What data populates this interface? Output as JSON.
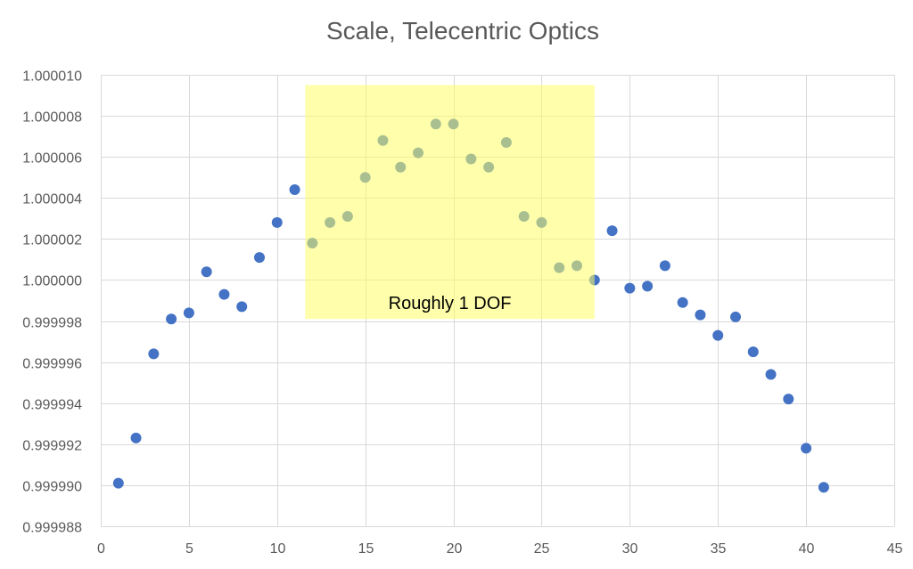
{
  "chart_data": {
    "type": "scatter",
    "title": "Scale, Telecentric Optics",
    "xlabel": "",
    "ylabel": "",
    "xlim": [
      0,
      45
    ],
    "ylim": [
      0.999988,
      1.00001
    ],
    "x_ticks": [
      0,
      5,
      10,
      15,
      20,
      25,
      30,
      35,
      40,
      45
    ],
    "x_tick_labels": [
      "0",
      "5",
      "10",
      "15",
      "20",
      "25",
      "30",
      "35",
      "40",
      "45"
    ],
    "y_ticks": [
      0.999988,
      0.99999,
      0.999992,
      0.999994,
      0.999996,
      0.999998,
      1.0,
      1.000002,
      1.000004,
      1.000006,
      1.000008,
      1.00001
    ],
    "y_tick_labels": [
      "0.999988",
      "0.999990",
      "0.999992",
      "0.999994",
      "0.999996",
      "0.999998",
      "1.000000",
      "1.000002",
      "1.000004",
      "1.000006",
      "1.000008",
      "1.000010"
    ],
    "grid": true,
    "legend": "none",
    "series": [
      {
        "color": "#4472C4",
        "points": [
          [
            1,
            0.9999901
          ],
          [
            2,
            0.9999923
          ],
          [
            3,
            0.9999964
          ],
          [
            4,
            0.9999981
          ],
          [
            5,
            0.9999984
          ],
          [
            6,
            1.0000004
          ],
          [
            7,
            0.9999993
          ],
          [
            8,
            0.9999987
          ],
          [
            9,
            1.0000011
          ],
          [
            10,
            1.0000028
          ],
          [
            11,
            1.0000044
          ],
          [
            12,
            1.0000018
          ],
          [
            13,
            1.0000028
          ],
          [
            14,
            1.0000031
          ],
          [
            15,
            1.000005
          ],
          [
            16,
            1.0000068
          ],
          [
            17,
            1.0000055
          ],
          [
            18,
            1.0000062
          ],
          [
            19,
            1.0000076
          ],
          [
            20,
            1.0000076
          ],
          [
            21,
            1.0000059
          ],
          [
            22,
            1.0000055
          ],
          [
            23,
            1.0000067
          ],
          [
            24,
            1.0000031
          ],
          [
            25,
            1.0000028
          ],
          [
            26,
            1.0000006
          ],
          [
            27,
            1.0000007
          ],
          [
            28,
            1.0
          ],
          [
            29,
            1.0000024
          ],
          [
            30,
            0.9999996
          ],
          [
            31,
            0.9999997
          ],
          [
            32,
            1.0000007
          ],
          [
            33,
            0.9999989
          ],
          [
            34,
            0.9999983
          ],
          [
            35,
            0.9999973
          ],
          [
            36,
            0.9999982
          ],
          [
            37,
            0.9999965
          ],
          [
            38,
            0.9999954
          ],
          [
            39,
            0.9999942
          ],
          [
            40,
            0.9999918
          ],
          [
            41,
            0.9999899
          ]
        ]
      }
    ],
    "annotations": [
      {
        "text": "Roughly 1 DOF",
        "x_range": [
          11.6,
          28.0
        ],
        "y_range": [
          0.9999981,
          1.0000095
        ],
        "fill": "#FFFF66",
        "opacity": 0.55
      }
    ]
  },
  "colors": {
    "marker": "#4472C4",
    "gridline": "#D9D9D9",
    "text": "#595959",
    "highlight": "#FFFF66"
  }
}
